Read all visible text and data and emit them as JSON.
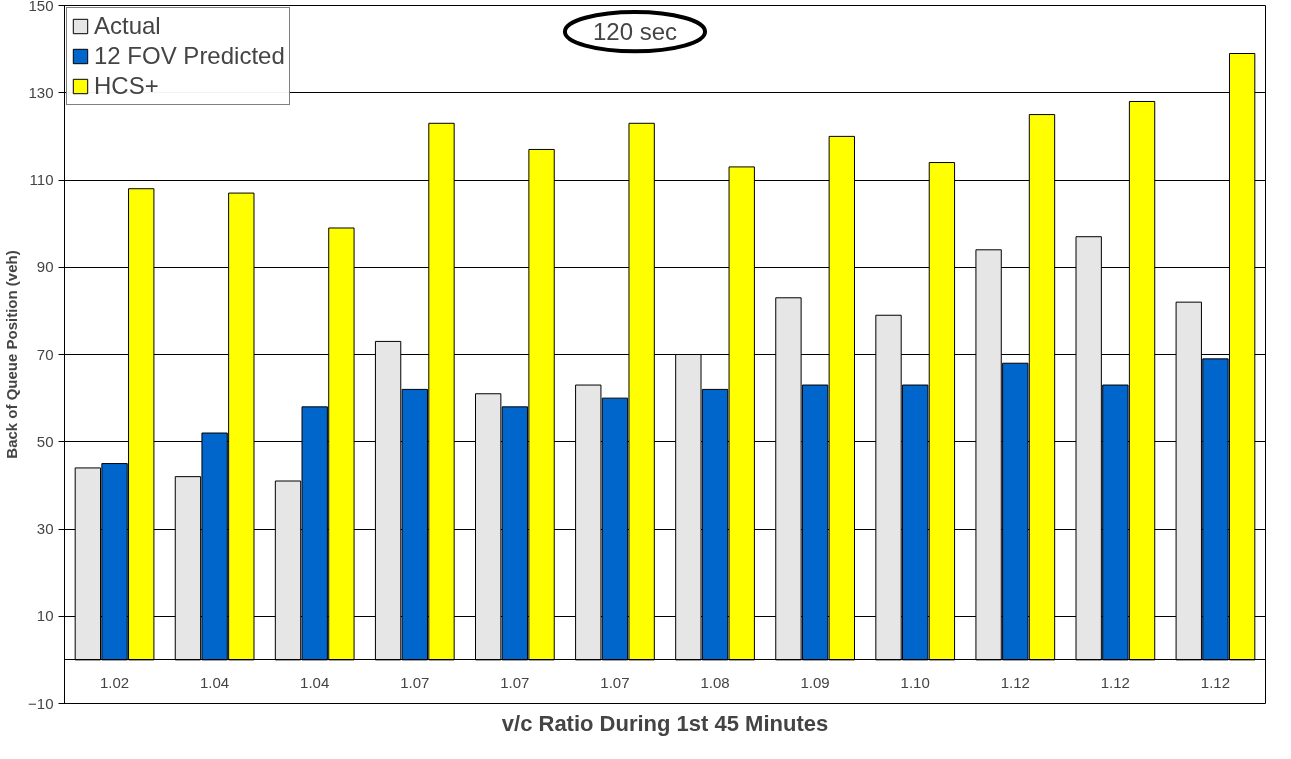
{
  "chart_data": {
    "type": "bar",
    "xlabel": "v/c Ratio During 1st 45 Minutes",
    "ylabel": "Back of Queue Position (veh)",
    "annotations": [
      "120 sec"
    ],
    "categories": [
      "1.02",
      "1.04",
      "1.04",
      "1.07",
      "1.07",
      "1.07",
      "1.08",
      "1.09",
      "1.10",
      "1.12",
      "1.12",
      "1.12"
    ],
    "series": [
      {
        "name": "Actual",
        "color": "#e6e6e6",
        "values": [
          44,
          42,
          41,
          73,
          61,
          63,
          70,
          83,
          79,
          94,
          97,
          82
        ]
      },
      {
        "name": "12 FOV Predicted",
        "color": "#0066cc",
        "values": [
          45,
          52,
          58,
          62,
          58,
          60,
          62,
          63,
          63,
          68,
          63,
          69
        ]
      },
      {
        "name": "HCS+",
        "color": "#ffff00",
        "values": [
          108,
          107,
          99,
          123,
          117,
          123,
          113,
          120,
          114,
          125,
          128,
          139
        ]
      }
    ],
    "ylim": [
      -10,
      150
    ],
    "yticks": [
      -10,
      10,
      30,
      50,
      70,
      90,
      110,
      130,
      150
    ],
    "grid": "y",
    "legend": "top left"
  }
}
